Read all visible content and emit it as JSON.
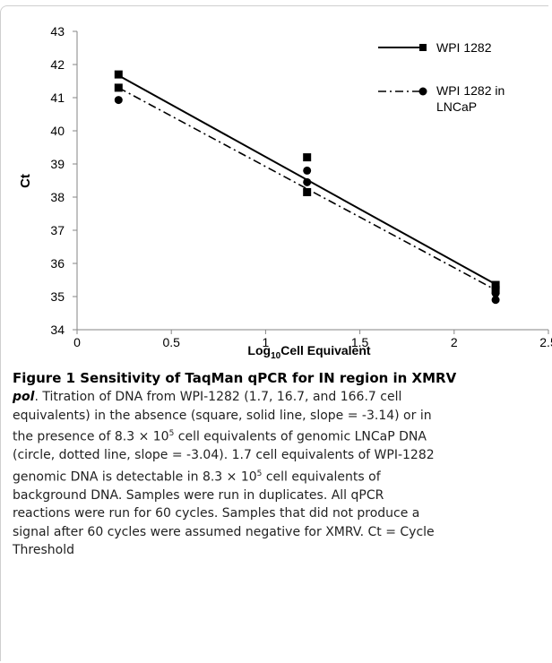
{
  "chart_data": {
    "type": "scatter",
    "xlabel": "Log",
    "xlabel_sub": "10",
    "xlabel_rest": "Cell Equivalent",
    "ylabel": "Ct",
    "xlim": [
      0,
      2.5
    ],
    "ylim": [
      34,
      43
    ],
    "xticks": [
      "0",
      "0.5",
      "1",
      "1.5",
      "2",
      "2.5"
    ],
    "yticks": [
      "34",
      "35",
      "36",
      "37",
      "38",
      "39",
      "40",
      "41",
      "42",
      "43"
    ],
    "grid": false,
    "legend_position": "top-right",
    "series": [
      {
        "name": "WPI 1282",
        "marker": "square",
        "line": "solid",
        "points": [
          [
            0.22,
            41.7
          ],
          [
            0.22,
            41.3
          ],
          [
            1.22,
            39.2
          ],
          [
            1.22,
            38.15
          ],
          [
            2.22,
            35.35
          ],
          [
            2.22,
            35.2
          ]
        ],
        "fit": [
          [
            0.22,
            41.67
          ],
          [
            2.22,
            35.37
          ]
        ]
      },
      {
        "name": "WPI 1282 in LNCaP",
        "legend_lines": [
          "WPI 1282 in",
          "LNCaP"
        ],
        "marker": "circle",
        "line": "dash-dot",
        "points": [
          [
            0.22,
            40.93
          ],
          [
            1.22,
            38.8
          ],
          [
            1.22,
            38.45
          ],
          [
            2.22,
            35.1
          ],
          [
            2.22,
            34.9
          ]
        ],
        "fit": [
          [
            0.22,
            41.3
          ],
          [
            2.22,
            35.2
          ]
        ]
      }
    ]
  },
  "caption": {
    "heading": "Figure 1 Sensitivity of TaqMan qPCR for IN region in XMRV",
    "pol": "pol",
    "lines": [
      ". Titration of DNA from WPI-1282 (1.7, 16.7, and 166.7 cell",
      "equivalents) in the absence (square, solid line, slope = -3.14) or in",
      "the presence of 8.3 × 10",
      "5",
      " cell equivalents of genomic LNCaP DNA",
      "(circle, dotted line, slope = -3.04). 1.7 cell equivalents of WPI-1282",
      "genomic DNA is detectable in 8.3 × 10",
      "5",
      " cell equivalents of",
      "background DNA. Samples were run in duplicates. All qPCR",
      "reactions were run for 60 cycles. Samples that did not produce a",
      "signal after 60 cycles were assumed negative for XMRV. Ct = Cycle",
      "Threshold"
    ]
  }
}
